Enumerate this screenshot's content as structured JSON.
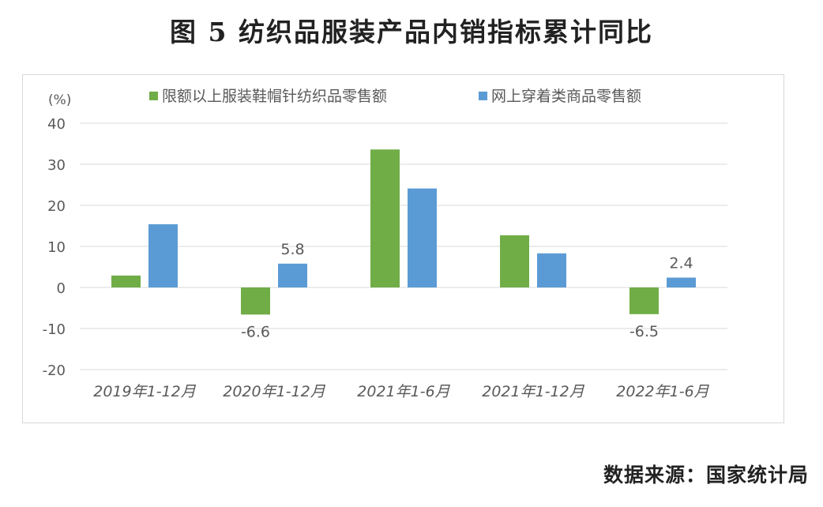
{
  "title": "图 5  纺织品服装产品内销指标累计同比",
  "source": "数据来源：国家统计局",
  "colors": {
    "series1": "#70ad47",
    "series2": "#5b9bd5",
    "grid": "#d9d9d9",
    "text": "#595959"
  },
  "chart_data": {
    "type": "bar",
    "ylabel": "(%)",
    "ylim": [
      -20,
      40
    ],
    "yticks": [
      40,
      30,
      20,
      10,
      0,
      -10,
      -20
    ],
    "grid": true,
    "legend_position": "top",
    "categories": [
      "2019年1-12月",
      "2020年1-12月",
      "2021年1-6月",
      "2021年1-12月",
      "2022年1-6月"
    ],
    "series": [
      {
        "name": "限额以上服装鞋帽针纺织品零售额",
        "values": [
          2.9,
          -6.6,
          33.6,
          12.7,
          -6.5
        ],
        "labels": [
          null,
          "-6.6",
          null,
          null,
          "-6.5"
        ]
      },
      {
        "name": "网上穿着类商品零售额",
        "values": [
          15.4,
          5.8,
          24.1,
          8.3,
          2.4
        ],
        "labels": [
          null,
          "5.8",
          null,
          null,
          "2.4"
        ]
      }
    ]
  }
}
